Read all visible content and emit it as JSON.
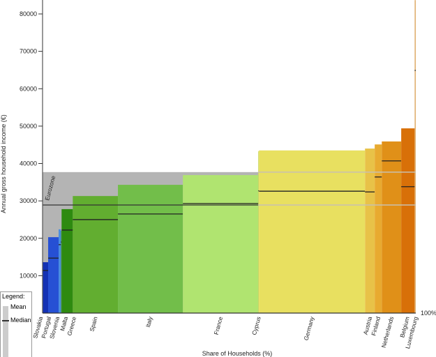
{
  "chart_data": {
    "type": "bar",
    "subtype": "variable-width (marimekko) bar",
    "xlabel": "Share of Households (%)",
    "ylabel": "Annual gross household income (€)",
    "x_end_label": "100%",
    "ylim": [
      0,
      84000
    ],
    "yticks": [
      10000,
      20000,
      30000,
      40000,
      50000,
      60000,
      70000,
      80000
    ],
    "grid": false,
    "legend": {
      "title": "Legend:",
      "mean_label": "Mean",
      "median_label": "Median",
      "placement": "bottom-left"
    },
    "reference": {
      "name": "Eurozone",
      "mean": 37700,
      "median": 28900,
      "color": "#b4b4b4"
    },
    "countries": [
      {
        "name": "Slovakia",
        "share": 1.5,
        "mean": 13600,
        "median": 11400,
        "color": "#1432b4"
      },
      {
        "name": "Portugal",
        "share": 2.8,
        "mean": 20300,
        "median": 14700,
        "color": "#2650d4"
      },
      {
        "name": "Slovenia",
        "share": 0.6,
        "mean": 22400,
        "median": 18300,
        "color": "#4a8ede"
      },
      {
        "name": "Malta",
        "share": 0.2,
        "mean": 22000,
        "median": 19000,
        "color": "#3a8a6a"
      },
      {
        "name": "Greece",
        "share": 3.0,
        "mean": 27800,
        "median": 22200,
        "color": "#2e8a10"
      },
      {
        "name": "Spain",
        "share": 12.1,
        "mean": 31300,
        "median": 25000,
        "color": "#62ae30"
      },
      {
        "name": "Italy",
        "share": 17.4,
        "mean": 34300,
        "median": 26500,
        "color": "#72be4a"
      },
      {
        "name": "France",
        "share": 20.2,
        "mean": 36900,
        "median": 29300,
        "color": "#b0e470"
      },
      {
        "name": "Cyprus",
        "share": 0.2,
        "mean": 43300,
        "median": 32700,
        "color": "#c8d450"
      },
      {
        "name": "Germany",
        "share": 28.4,
        "mean": 43500,
        "median": 32600,
        "color": "#e8e060"
      },
      {
        "name": "Austria",
        "share": 2.6,
        "mean": 44000,
        "median": 32400,
        "color": "#e8c248"
      },
      {
        "name": "Finland",
        "share": 1.9,
        "mean": 45100,
        "median": 36400,
        "color": "#e8aa30"
      },
      {
        "name": "Netherlands",
        "share": 5.2,
        "mean": 45900,
        "median": 40700,
        "color": "#e09018"
      },
      {
        "name": "Belgium",
        "share": 3.6,
        "mean": 49400,
        "median": 33800,
        "color": "#d87008"
      },
      {
        "name": "Luxembourg",
        "share": 0.3,
        "mean": 83700,
        "median": 64900,
        "color": "#e0b070"
      }
    ]
  }
}
